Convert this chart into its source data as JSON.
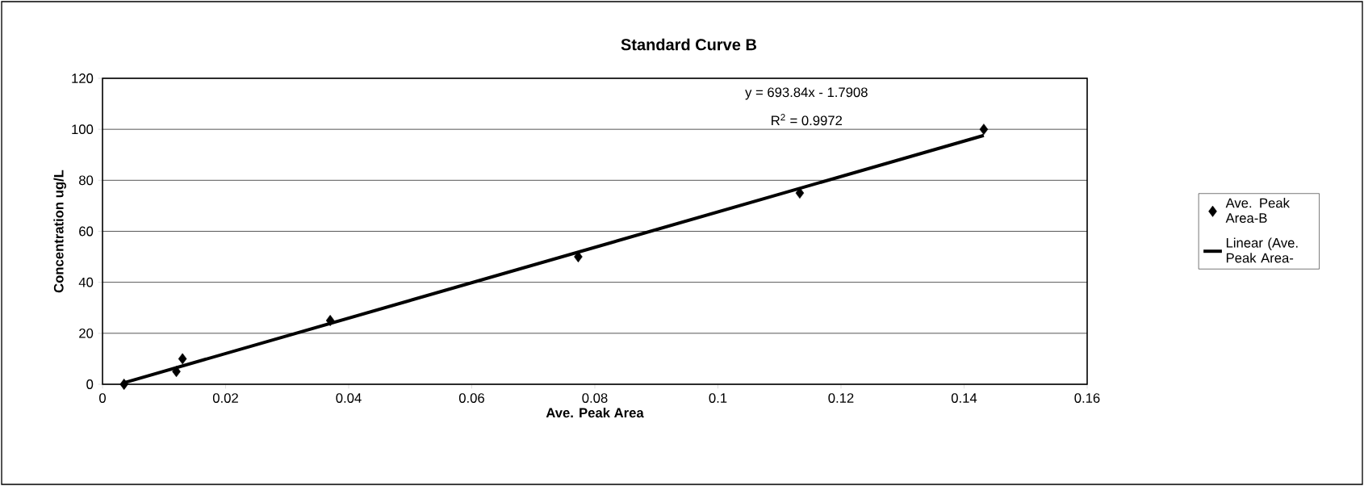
{
  "chart_data": {
    "type": "scatter",
    "title": "Standard Curve B",
    "xlabel": "Ave. Peak Area",
    "ylabel": "Concentration ug/L",
    "x": [
      0.0035,
      0.012,
      0.013,
      0.037,
      0.0773,
      0.1133,
      0.1432
    ],
    "series": [
      {
        "name": "Ave. Peak Area-B",
        "color": "#000000",
        "marker": "diamond",
        "values": [
          0,
          5,
          10,
          25,
          50,
          75,
          100
        ]
      },
      {
        "name": "Linear (Ave. Peak Area-",
        "type": "line",
        "color": "#000000",
        "x": [
          0.0035,
          0.1432
        ],
        "values": [
          0.6,
          97.6
        ]
      }
    ],
    "annotations": [
      "y = 693.84x - 1.7908",
      "R$^{2}$ = 0.9972"
    ],
    "xlim": [
      0,
      0.16
    ],
    "xticks": [
      0,
      0.02,
      0.04,
      0.06,
      0.08,
      0.1,
      0.12,
      0.14,
      0.16
    ],
    "ylim": [
      0,
      120
    ],
    "yticks": [
      0,
      20,
      40,
      60,
      80,
      100,
      120
    ],
    "grid": "y",
    "legend": "right"
  }
}
